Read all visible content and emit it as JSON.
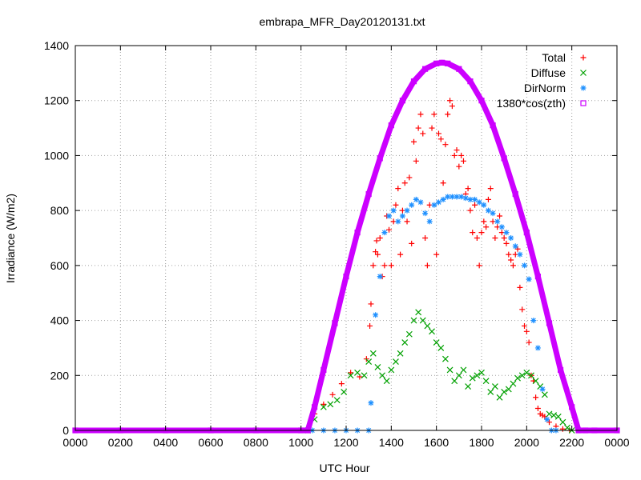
{
  "chart_data": {
    "type": "scatter",
    "title": "embrapa_MFR_Day20120131.txt",
    "xlabel": "UTC Hour",
    "ylabel": "Irradiance (W/m2)",
    "xlim": [
      0,
      24
    ],
    "ylim": [
      0,
      1400
    ],
    "xticks": [
      {
        "value": 0,
        "label": "0000"
      },
      {
        "value": 2,
        "label": "0200"
      },
      {
        "value": 4,
        "label": "0400"
      },
      {
        "value": 6,
        "label": "0600"
      },
      {
        "value": 8,
        "label": "0800"
      },
      {
        "value": 10,
        "label": "1000"
      },
      {
        "value": 12,
        "label": "1200"
      },
      {
        "value": 14,
        "label": "1400"
      },
      {
        "value": 16,
        "label": "1600"
      },
      {
        "value": 18,
        "label": "1800"
      },
      {
        "value": 20,
        "label": "2000"
      },
      {
        "value": 22,
        "label": "2200"
      },
      {
        "value": 24,
        "label": "0000"
      }
    ],
    "yticks": [
      {
        "value": 0,
        "label": "0"
      },
      {
        "value": 200,
        "label": "200"
      },
      {
        "value": 400,
        "label": "400"
      },
      {
        "value": 600,
        "label": "600"
      },
      {
        "value": 800,
        "label": "800"
      },
      {
        "value": 1000,
        "label": "1000"
      },
      {
        "value": 1200,
        "label": "1200"
      },
      {
        "value": 1400,
        "label": "1400"
      }
    ],
    "grid": true,
    "legend_position": "top-right",
    "series": [
      {
        "name": "Total",
        "marker": "plus",
        "color": "#ff0000",
        "x": [
          10.3,
          10.6,
          11.0,
          11.4,
          11.8,
          12.2,
          12.6,
          12.9,
          13.05,
          13.1,
          13.2,
          13.3,
          13.35,
          13.4,
          13.5,
          13.6,
          13.7,
          13.8,
          13.9,
          14.0,
          14.1,
          14.2,
          14.3,
          14.4,
          14.5,
          14.6,
          14.7,
          14.8,
          14.9,
          15.0,
          15.1,
          15.2,
          15.3,
          15.4,
          15.5,
          15.6,
          15.7,
          15.8,
          15.9,
          16.0,
          16.1,
          16.2,
          16.3,
          16.4,
          16.5,
          16.6,
          16.7,
          16.8,
          16.9,
          17.0,
          17.1,
          17.2,
          17.3,
          17.4,
          17.5,
          17.6,
          17.7,
          17.8,
          17.9,
          18.0,
          18.1,
          18.2,
          18.3,
          18.4,
          18.5,
          18.6,
          18.7,
          18.8,
          18.9,
          19.0,
          19.1,
          19.2,
          19.3,
          19.4,
          19.5,
          19.6,
          19.7,
          19.8,
          19.9,
          20.0,
          20.1,
          20.2,
          20.3,
          20.4,
          20.5,
          20.6,
          20.7,
          20.8,
          21.0,
          21.3,
          21.6,
          21.9
        ],
        "y": [
          0,
          60,
          95,
          130,
          170,
          210,
          195,
          260,
          380,
          460,
          600,
          650,
          690,
          640,
          700,
          560,
          600,
          780,
          730,
          600,
          760,
          820,
          880,
          640,
          800,
          900,
          760,
          920,
          680,
          1050,
          980,
          1100,
          1150,
          1080,
          700,
          600,
          820,
          1100,
          1150,
          640,
          1080,
          1060,
          900,
          1040,
          1150,
          1200,
          1180,
          1000,
          1020,
          960,
          1000,
          980,
          860,
          880,
          800,
          720,
          820,
          700,
          600,
          720,
          760,
          740,
          840,
          880,
          760,
          700,
          740,
          780,
          720,
          700,
          680,
          640,
          620,
          600,
          640,
          660,
          520,
          440,
          380,
          360,
          320,
          200,
          180,
          120,
          80,
          60,
          55,
          50,
          30,
          15,
          5,
          0
        ]
      },
      {
        "name": "Diffuse",
        "marker": "cross",
        "color": "#00a000",
        "x": [
          10.3,
          10.6,
          11.0,
          11.3,
          11.6,
          11.9,
          12.2,
          12.5,
          12.8,
          13.0,
          13.2,
          13.4,
          13.6,
          13.8,
          14.0,
          14.2,
          14.4,
          14.6,
          14.8,
          15.0,
          15.2,
          15.4,
          15.6,
          15.8,
          16.0,
          16.2,
          16.4,
          16.6,
          16.8,
          17.0,
          17.2,
          17.4,
          17.6,
          17.8,
          18.0,
          18.2,
          18.4,
          18.6,
          18.8,
          19.0,
          19.2,
          19.4,
          19.6,
          19.8,
          20.0,
          20.2,
          20.4,
          20.6,
          20.8,
          21.0,
          21.2,
          21.4,
          21.6,
          21.8,
          22.0
        ],
        "y": [
          0,
          40,
          85,
          95,
          110,
          140,
          200,
          210,
          200,
          250,
          280,
          230,
          200,
          180,
          220,
          250,
          280,
          320,
          350,
          400,
          430,
          400,
          380,
          360,
          320,
          300,
          260,
          220,
          180,
          200,
          220,
          160,
          190,
          200,
          210,
          180,
          140,
          160,
          120,
          140,
          150,
          170,
          190,
          200,
          210,
          200,
          180,
          160,
          130,
          60,
          55,
          50,
          30,
          10,
          0
        ]
      },
      {
        "name": "DirNorm",
        "marker": "star",
        "color": "#1e90ff",
        "x": [
          10.0,
          10.5,
          11.0,
          11.5,
          12.0,
          12.5,
          13.0,
          13.1,
          13.3,
          13.5,
          13.7,
          13.9,
          14.1,
          14.3,
          14.5,
          14.7,
          14.9,
          15.1,
          15.3,
          15.5,
          15.7,
          15.9,
          16.1,
          16.3,
          16.5,
          16.7,
          16.9,
          17.1,
          17.3,
          17.5,
          17.7,
          17.9,
          18.1,
          18.3,
          18.5,
          18.7,
          18.9,
          19.1,
          19.3,
          19.5,
          19.7,
          19.9,
          20.1,
          20.3,
          20.5,
          20.7,
          20.9,
          21.1,
          21.3
        ],
        "y": [
          0,
          0,
          0,
          0,
          0,
          0,
          0,
          100,
          420,
          560,
          720,
          780,
          800,
          760,
          780,
          800,
          820,
          840,
          830,
          790,
          760,
          820,
          830,
          840,
          850,
          850,
          850,
          850,
          845,
          840,
          840,
          830,
          820,
          800,
          790,
          760,
          740,
          720,
          700,
          670,
          640,
          600,
          550,
          400,
          300,
          150,
          40,
          0,
          0
        ]
      },
      {
        "name": "1380*cos(zth)",
        "marker": "square",
        "color": "#cc00ff",
        "x": [
          0,
          2,
          4,
          6,
          8,
          10,
          10.3,
          10.6,
          11.0,
          11.5,
          12.0,
          12.5,
          13.0,
          13.5,
          14.0,
          14.5,
          15.0,
          15.5,
          16.0,
          16.25,
          16.5,
          17.0,
          17.5,
          18.0,
          18.5,
          19.0,
          19.5,
          20.0,
          20.5,
          21.0,
          21.5,
          22.0,
          22.3,
          22.6,
          23.0,
          24.0
        ],
        "y": [
          0,
          0,
          0,
          0,
          0,
          0,
          0,
          85,
          220,
          390,
          560,
          720,
          860,
          990,
          1110,
          1200,
          1270,
          1315,
          1335,
          1338,
          1335,
          1315,
          1270,
          1200,
          1110,
          990,
          860,
          720,
          560,
          390,
          220,
          85,
          0,
          0,
          0,
          0
        ]
      }
    ]
  }
}
